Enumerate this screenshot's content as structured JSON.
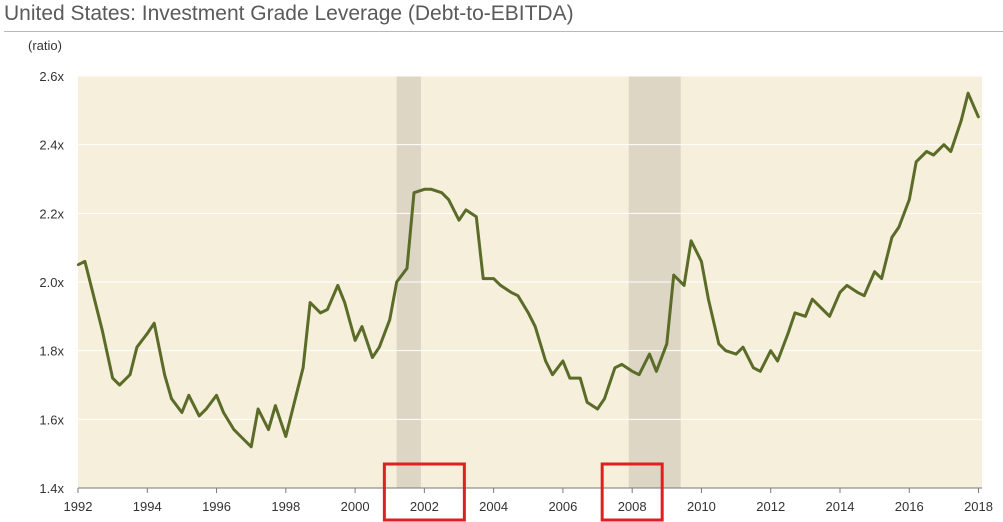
{
  "chart_data": {
    "type": "line",
    "title": "United States: Investment Grade Leverage (Debt-to-EBITDA)",
    "unit_label": "(ratio)",
    "xlim": [
      1992,
      2018.1
    ],
    "ylim": [
      1.4,
      2.6
    ],
    "y_ticks": [
      1.4,
      1.6,
      1.8,
      2.0,
      2.2,
      2.4,
      2.6
    ],
    "y_tick_labels": [
      "1.4x",
      "1.6x",
      "1.8x",
      "2.0x",
      "2.2x",
      "2.4x",
      "2.6x"
    ],
    "x_ticks": [
      1992,
      1994,
      1996,
      1998,
      2000,
      2002,
      2004,
      2006,
      2008,
      2010,
      2012,
      2014,
      2016,
      2018
    ],
    "x_tick_labels": [
      "1992",
      "1994",
      "1996",
      "1998",
      "2000",
      "2002",
      "2004",
      "2006",
      "2008",
      "2010",
      "2012",
      "2014",
      "2016",
      "2018"
    ],
    "shaded_periods": [
      [
        2001.2,
        2001.9
      ],
      [
        2007.9,
        2009.4
      ]
    ],
    "highlight_boxes": [
      "2002",
      "2008"
    ],
    "grid": "horizontal",
    "background_color": "#f5efdc",
    "shade_color": "#ddd6c4",
    "line_color": "#5b6b28",
    "highlight_color": "#e02020",
    "series": [
      {
        "x": [
          1992.0,
          1992.2,
          1992.5,
          1992.7,
          1993.0,
          1993.2,
          1993.5,
          1993.7,
          1994.0,
          1994.2,
          1994.5,
          1994.7,
          1995.0,
          1995.2,
          1995.5,
          1995.7,
          1996.0,
          1996.2,
          1996.5,
          1996.7,
          1997.0,
          1997.2,
          1997.5,
          1997.7,
          1998.0,
          1998.2,
          1998.5,
          1998.7,
          1999.0,
          1999.2,
          1999.5,
          1999.7,
          2000.0,
          2000.2,
          2000.5,
          2000.7,
          2001.0,
          2001.2,
          2001.5,
          2001.7,
          2002.0,
          2002.2,
          2002.5,
          2002.7,
          2003.0,
          2003.2,
          2003.5,
          2003.7,
          2004.0,
          2004.2,
          2004.5,
          2004.7,
          2005.0,
          2005.2,
          2005.5,
          2005.7,
          2006.0,
          2006.2,
          2006.5,
          2006.7,
          2007.0,
          2007.2,
          2007.5,
          2007.7,
          2008.0,
          2008.2,
          2008.5,
          2008.7,
          2009.0,
          2009.2,
          2009.5,
          2009.7,
          2010.0,
          2010.2,
          2010.5,
          2010.7,
          2011.0,
          2011.2,
          2011.5,
          2011.7,
          2012.0,
          2012.2,
          2012.5,
          2012.7,
          2013.0,
          2013.2,
          2013.5,
          2013.7,
          2014.0,
          2014.2,
          2014.5,
          2014.7,
          2015.0,
          2015.2,
          2015.5,
          2015.7,
          2016.0,
          2016.2,
          2016.5,
          2016.7,
          2017.0,
          2017.2,
          2017.5,
          2017.7,
          2018.0
        ],
        "y": [
          2.05,
          2.06,
          1.94,
          1.86,
          1.72,
          1.7,
          1.73,
          1.81,
          1.85,
          1.88,
          1.73,
          1.66,
          1.62,
          1.67,
          1.61,
          1.63,
          1.67,
          1.62,
          1.57,
          1.55,
          1.52,
          1.63,
          1.57,
          1.64,
          1.55,
          1.63,
          1.75,
          1.94,
          1.91,
          1.92,
          1.99,
          1.94,
          1.83,
          1.87,
          1.78,
          1.81,
          1.89,
          2.0,
          2.04,
          2.26,
          2.27,
          2.27,
          2.26,
          2.24,
          2.18,
          2.21,
          2.19,
          2.01,
          2.01,
          1.99,
          1.97,
          1.96,
          1.91,
          1.87,
          1.77,
          1.73,
          1.77,
          1.72,
          1.72,
          1.65,
          1.63,
          1.66,
          1.75,
          1.76,
          1.74,
          1.73,
          1.79,
          1.74,
          1.82,
          2.02,
          1.99,
          2.12,
          2.06,
          1.95,
          1.82,
          1.8,
          1.79,
          1.81,
          1.75,
          1.74,
          1.8,
          1.77,
          1.85,
          1.91,
          1.9,
          1.95,
          1.92,
          1.9,
          1.97,
          1.99,
          1.97,
          1.96,
          2.03,
          2.01,
          2.13,
          2.16,
          2.24,
          2.35,
          2.38,
          2.37,
          2.4,
          2.38,
          2.47,
          2.55,
          2.48
        ]
      }
    ]
  }
}
